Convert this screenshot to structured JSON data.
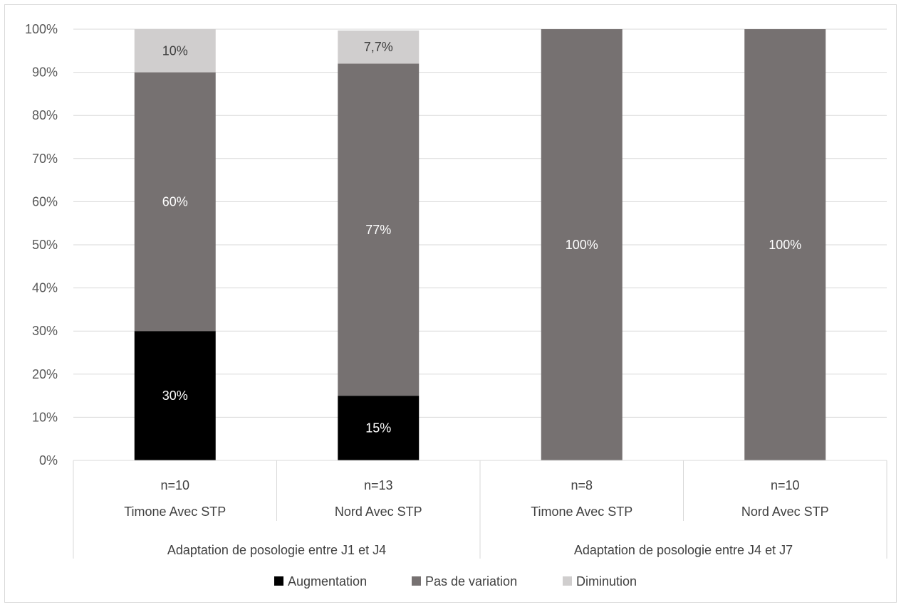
{
  "chart_data": {
    "type": "bar",
    "stacked": true,
    "percent": true,
    "title": "",
    "xlabel": "",
    "ylabel": "",
    "ylim": [
      0,
      100
    ],
    "yticks": [
      "0%",
      "10%",
      "20%",
      "30%",
      "40%",
      "50%",
      "60%",
      "70%",
      "80%",
      "90%",
      "100%"
    ],
    "grid": true,
    "legend_position": "bottom",
    "groups": [
      {
        "label": "Adaptation de posologie entre J1 et J4",
        "span": 2
      },
      {
        "label": "Adaptation de posologie entre J4 et J7",
        "span": 2
      }
    ],
    "categories": [
      {
        "name": "Timone Avec STP",
        "n": "n=10"
      },
      {
        "name": "Nord Avec STP",
        "n": "n=13"
      },
      {
        "name": "Timone Avec STP",
        "n": "n=8"
      },
      {
        "name": "Nord Avec STP",
        "n": "n=10"
      }
    ],
    "series": [
      {
        "name": "Augmentation",
        "color": "#000000",
        "label_color": "#ffffff",
        "values": [
          30,
          15,
          0,
          0
        ],
        "labels": [
          "30%",
          "15%",
          "",
          ""
        ]
      },
      {
        "name": "Pas de variation",
        "color": "#767171",
        "label_color": "#ffffff",
        "values": [
          60,
          77,
          100,
          100
        ],
        "labels": [
          "60%",
          "77%",
          "100%",
          "100%"
        ]
      },
      {
        "name": "Diminution",
        "color": "#d0cece",
        "label_color": "#404040",
        "values": [
          10,
          7.7,
          0,
          0
        ],
        "labels": [
          "10%",
          "7,7%",
          "",
          ""
        ]
      }
    ]
  }
}
